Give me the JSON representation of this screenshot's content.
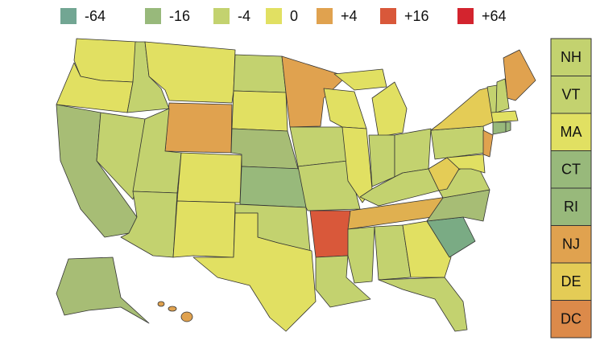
{
  "legend": [
    {
      "label": "-64",
      "color": "#72a693"
    },
    {
      "label": "-16",
      "color": "#98b97b"
    },
    {
      "label": "-4",
      "color": "#c3d26f"
    },
    {
      "label": "0",
      "color": "#e1e062"
    },
    {
      "label": "+4",
      "color": "#e0a24f"
    },
    {
      "label": "+16",
      "color": "#d9583a"
    },
    {
      "label": "+64",
      "color": "#d3242e"
    }
  ],
  "sidebar": [
    {
      "label": "NH",
      "color": "#c3d26f"
    },
    {
      "label": "VT",
      "color": "#c3d26f"
    },
    {
      "label": "MA",
      "color": "#e1e062"
    },
    {
      "label": "CT",
      "color": "#98b97b"
    },
    {
      "label": "RI",
      "color": "#98b97b"
    },
    {
      "label": "NJ",
      "color": "#e0a24f"
    },
    {
      "label": "DE",
      "color": "#e4cc56"
    },
    {
      "label": "DC",
      "color": "#dc8a4a"
    }
  ]
}
